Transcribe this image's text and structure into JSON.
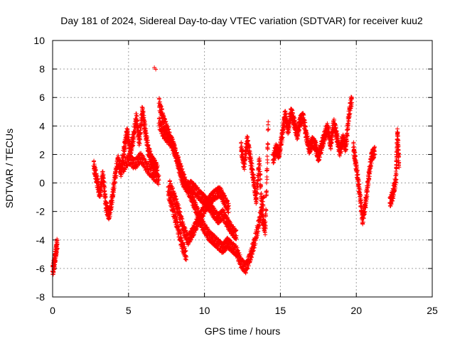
{
  "chart_data": {
    "type": "scatter",
    "title": "Day 181 of 2024, Sidereal Day-to-day VTEC variation (SDTVAR) for receiver kuu2",
    "xlabel": "GPS time / hours",
    "ylabel": "SDTVAR / TECUs",
    "xlim": [
      0,
      25
    ],
    "ylim": [
      -8,
      10
    ],
    "xticks": [
      "0",
      "5",
      "10",
      "15",
      "20",
      "25"
    ],
    "yticks": [
      "-8",
      "-6",
      "-4",
      "-2",
      "0",
      "2",
      "4",
      "6",
      "8",
      "10"
    ],
    "grid": true,
    "marker": "+",
    "color": "#ff0000",
    "series": [
      {
        "name": "SDTVAR kuu2",
        "segments": [
          {
            "x": [
              0.0,
              0.1,
              0.2,
              0.3
            ],
            "y": [
              -6.2,
              -5.6,
              -4.9,
              -4.2
            ]
          },
          {
            "x": [
              2.7,
              2.9,
              3.1,
              3.3,
              3.5,
              3.7,
              3.9,
              4.1,
              4.3,
              4.5,
              4.7,
              4.9,
              5.1,
              5.3,
              5.5,
              5.7,
              5.9,
              6.1,
              6.3,
              6.5,
              6.7,
              6.9
            ],
            "y": [
              1.2,
              0.2,
              -0.8,
              0.6,
              -1.6,
              -2.3,
              -1.2,
              0.4,
              1.6,
              0.8,
              2.4,
              3.6,
              2.2,
              3.1,
              4.6,
              2.9,
              5.1,
              3.6,
              2.3,
              1.6,
              1.3,
              0.9
            ]
          },
          {
            "x": [
              4.6,
              5.0,
              5.4,
              5.8,
              6.2,
              6.6,
              7.0
            ],
            "y": [
              1.0,
              1.7,
              1.3,
              1.8,
              1.1,
              0.6,
              0.2
            ]
          },
          {
            "x": [
              6.7
            ],
            "y": [
              8.1
            ]
          },
          {
            "x": [
              7.0,
              7.3,
              7.6,
              7.9,
              8.2,
              8.5,
              8.8,
              9.1,
              9.4,
              9.7,
              10.0,
              10.3,
              10.6,
              10.9,
              11.2,
              11.5,
              11.8,
              12.1,
              12.4,
              12.7,
              13.0,
              13.3,
              13.6,
              13.9
            ],
            "y": [
              5.6,
              4.4,
              3.5,
              2.6,
              1.7,
              0.7,
              -0.2,
              -0.9,
              -1.7,
              -2.6,
              -3.2,
              -3.7,
              -4.0,
              -4.3,
              -4.6,
              -4.2,
              -4.5,
              -4.8,
              -5.6,
              -6.0,
              -5.2,
              -4.1,
              -2.7,
              -1.0
            ]
          },
          {
            "x": [
              7.0,
              7.3,
              7.6,
              7.9,
              8.2,
              8.5,
              8.8,
              9.1,
              9.4,
              9.7,
              10.0,
              10.3,
              10.6,
              10.9,
              11.2,
              11.5,
              11.8,
              12.1
            ],
            "y": [
              4.2,
              3.5,
              3.1,
              2.8,
              1.6,
              0.3,
              -0.3,
              -0.2,
              -0.5,
              -0.9,
              -1.2,
              -1.6,
              -2.1,
              -2.5,
              -2.2,
              -2.8,
              -3.3,
              -3.7
            ]
          },
          {
            "x": [
              7.7,
              8.0,
              8.3,
              8.6,
              8.9,
              9.2,
              9.5,
              9.8,
              10.1,
              10.4,
              10.7,
              11.0,
              11.3,
              11.6
            ],
            "y": [
              -0.2,
              -1.0,
              -2.0,
              -3.2,
              -4.0,
              -3.5,
              -2.8,
              -2.2,
              -1.6,
              -1.1,
              -0.8,
              -0.6,
              -1.2,
              -1.8
            ]
          },
          {
            "x": [
              7.6,
              7.9,
              8.2,
              8.5,
              8.8
            ],
            "y": [
              -0.6,
              -1.8,
              -3.0,
              -4.3,
              -5.2
            ]
          },
          {
            "x": [
              12.4,
              12.6,
              12.8,
              13.0,
              13.2,
              13.4,
              13.6,
              13.8,
              14.0,
              14.2
            ],
            "y": [
              2.5,
              1.2,
              3.0,
              1.8,
              0.4,
              -1.2,
              1.6,
              -2.5,
              -3.3,
              4.3
            ]
          },
          {
            "x": [
              14.5,
              14.7,
              14.9,
              15.1,
              15.3,
              15.5,
              15.7,
              15.9,
              16.1,
              16.3,
              16.5,
              16.7,
              16.9,
              17.1,
              17.3,
              17.5,
              17.7,
              17.9,
              18.1,
              18.3,
              18.5,
              18.7,
              18.9,
              19.1,
              19.3,
              19.5,
              19.7
            ],
            "y": [
              1.6,
              2.4,
              2.0,
              3.3,
              4.8,
              3.7,
              5.0,
              4.2,
              3.4,
              4.4,
              4.6,
              3.3,
              2.4,
              2.9,
              2.6,
              1.8,
              2.6,
              3.3,
              3.9,
              2.7,
              4.2,
              3.3,
              2.2,
              3.1,
              2.5,
              4.8,
              6.0
            ]
          },
          {
            "x": [
              19.8,
              20.0,
              20.2,
              20.4,
              20.6,
              20.8,
              21.0,
              21.2
            ],
            "y": [
              2.5,
              1.0,
              -0.6,
              -2.6,
              -1.4,
              0.4,
              1.9,
              2.2
            ]
          },
          {
            "x": [
              22.2,
              22.4,
              22.6,
              22.7,
              22.8
            ],
            "y": [
              -1.4,
              -0.8,
              0.3,
              3.6,
              1.2
            ]
          }
        ]
      }
    ]
  }
}
